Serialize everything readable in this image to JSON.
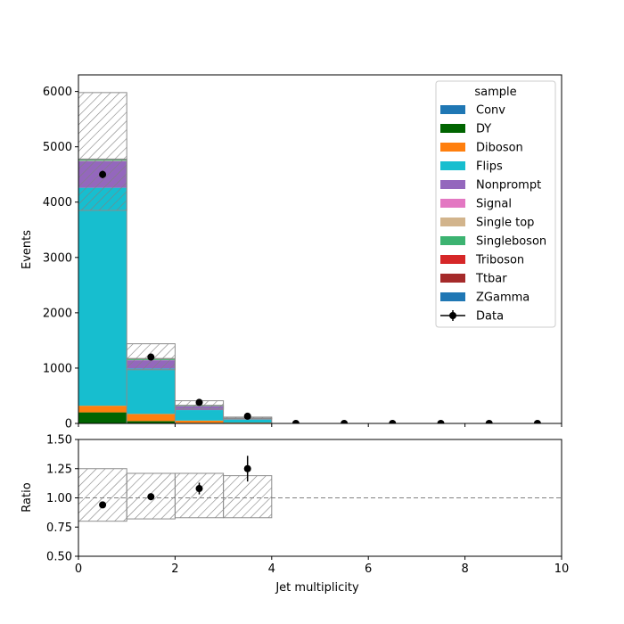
{
  "chart_data": [
    {
      "type": "bar",
      "stacked": true,
      "xlabel": "",
      "ylabel": "Events",
      "xlim": [
        0,
        10
      ],
      "ylim": [
        0,
        6300
      ],
      "xticks": [
        0,
        2,
        4,
        6,
        8,
        10
      ],
      "yticks": [
        0,
        1000,
        2000,
        3000,
        4000,
        5000,
        6000
      ],
      "bin_edges": [
        0,
        1,
        2,
        3,
        4,
        5,
        6,
        7,
        8,
        9,
        10
      ],
      "legend": {
        "title": "sample",
        "placement": "top-right",
        "entries": [
          "Conv",
          "DY",
          "Diboson",
          "Flips",
          "Nonprompt",
          "Signal",
          "Single top",
          "Singleboson",
          "Triboson",
          "Ttbar",
          "ZGamma",
          "Data"
        ]
      },
      "series": [
        {
          "name": "Conv",
          "color": "#1f77b4",
          "values": [
            5,
            2,
            1,
            0,
            0,
            0,
            0,
            0,
            0,
            0
          ]
        },
        {
          "name": "DY",
          "color": "#006400",
          "values": [
            195,
            40,
            10,
            3,
            0,
            0,
            0,
            0,
            0,
            0
          ]
        },
        {
          "name": "Diboson",
          "color": "#ff7f0e",
          "values": [
            120,
            130,
            40,
            12,
            0,
            0,
            0,
            0,
            0,
            0
          ]
        },
        {
          "name": "Flips",
          "color": "#17becf",
          "values": [
            3940,
            820,
            190,
            55,
            0,
            0,
            0,
            0,
            0,
            0
          ]
        },
        {
          "name": "Nonprompt",
          "color": "#9467bd",
          "values": [
            480,
            150,
            70,
            20,
            0,
            0,
            0,
            0,
            0,
            0
          ]
        },
        {
          "name": "Signal",
          "color": "#e377c2",
          "values": [
            3,
            1,
            1,
            0,
            0,
            0,
            0,
            0,
            0,
            0
          ]
        },
        {
          "name": "Single top",
          "color": "#d2b48c",
          "values": [
            5,
            3,
            2,
            1,
            0,
            0,
            0,
            0,
            0,
            0
          ]
        },
        {
          "name": "Singleboson",
          "color": "#3cb371",
          "values": [
            20,
            20,
            10,
            4,
            0,
            0,
            0,
            0,
            0,
            0
          ]
        },
        {
          "name": "Triboson",
          "color": "#d62728",
          "values": [
            2,
            2,
            1,
            0,
            0,
            0,
            0,
            0,
            0,
            0
          ]
        },
        {
          "name": "Ttbar",
          "color": "#a52a2a",
          "values": [
            5,
            5,
            3,
            2,
            0,
            0,
            0,
            0,
            0,
            0
          ]
        },
        {
          "name": "ZGamma",
          "color": "#1f77b4",
          "values": [
            5,
            2,
            1,
            0,
            0,
            0,
            0,
            0,
            0,
            0
          ]
        }
      ],
      "uncertainty_band": {
        "low": [
          3850,
          970,
          260,
          80,
          0,
          0,
          0,
          0,
          0,
          0
        ],
        "high": [
          5980,
          1440,
          410,
          115,
          0,
          0,
          0,
          0,
          0,
          0
        ]
      },
      "data": {
        "name": "Data",
        "x": [
          0.5,
          1.5,
          2.5,
          3.5,
          4.5,
          5.5,
          6.5,
          7.5,
          8.5,
          9.5
        ],
        "y": [
          4500,
          1200,
          380,
          130,
          0,
          0,
          0,
          0,
          0,
          0
        ],
        "yerr": [
          67,
          35,
          19,
          11,
          0,
          0,
          0,
          0,
          0,
          0
        ]
      }
    },
    {
      "type": "scatter",
      "xlabel": "Jet multiplicity",
      "ylabel": "Ratio",
      "xlim": [
        0,
        10
      ],
      "ylim": [
        0.5,
        1.5
      ],
      "xticks": [
        0,
        2,
        4,
        6,
        8,
        10
      ],
      "yticks": [
        "0.50",
        "0.75",
        "1.00",
        "1.25",
        "1.50"
      ],
      "reference_line": 1.0,
      "x": [
        0.5,
        1.5,
        2.5,
        3.5
      ],
      "y": [
        0.94,
        1.01,
        1.08,
        1.25
      ],
      "yerr": [
        0.015,
        0.03,
        0.05,
        0.11
      ],
      "uncertainty_band": {
        "low": [
          0.8,
          0.82,
          0.83,
          0.83
        ],
        "high": [
          1.25,
          1.21,
          1.21,
          1.19
        ]
      }
    }
  ],
  "colors": {
    "hatch": "#808080",
    "reference_line": "#808080",
    "data_marker": "#000000"
  }
}
